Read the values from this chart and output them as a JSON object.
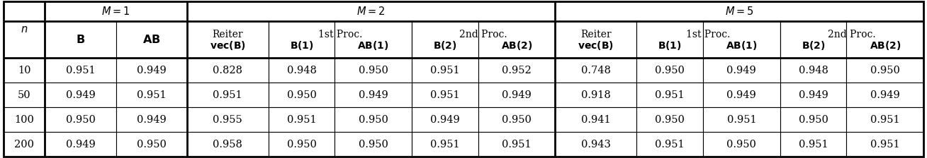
{
  "n_values": [
    10,
    50,
    100,
    200
  ],
  "columns": {
    "M1": {
      "B": [
        0.951,
        0.949,
        0.95,
        0.949
      ],
      "AB": [
        0.949,
        0.951,
        0.949,
        0.95
      ]
    },
    "M2": {
      "Reiter_vecB": [
        0.828,
        0.951,
        0.955,
        0.958
      ],
      "B1": [
        0.948,
        0.95,
        0.951,
        0.95
      ],
      "AB1": [
        0.95,
        0.949,
        0.95,
        0.95
      ],
      "B2": [
        0.951,
        0.951,
        0.949,
        0.951
      ],
      "AB2": [
        0.952,
        0.949,
        0.95,
        0.951
      ]
    },
    "M5": {
      "Reiter_vecB": [
        0.748,
        0.918,
        0.941,
        0.943
      ],
      "B1": [
        0.95,
        0.951,
        0.95,
        0.951
      ],
      "AB1": [
        0.949,
        0.949,
        0.951,
        0.95
      ],
      "B2": [
        0.948,
        0.949,
        0.95,
        0.951
      ],
      "AB2": [
        0.95,
        0.949,
        0.951,
        0.951
      ]
    }
  },
  "bg_color": "#ffffff",
  "border_color": "#000000",
  "thick_lw": 2.0,
  "thin_lw": 0.8,
  "font_size": 10.5,
  "header_font_size": 10.5
}
